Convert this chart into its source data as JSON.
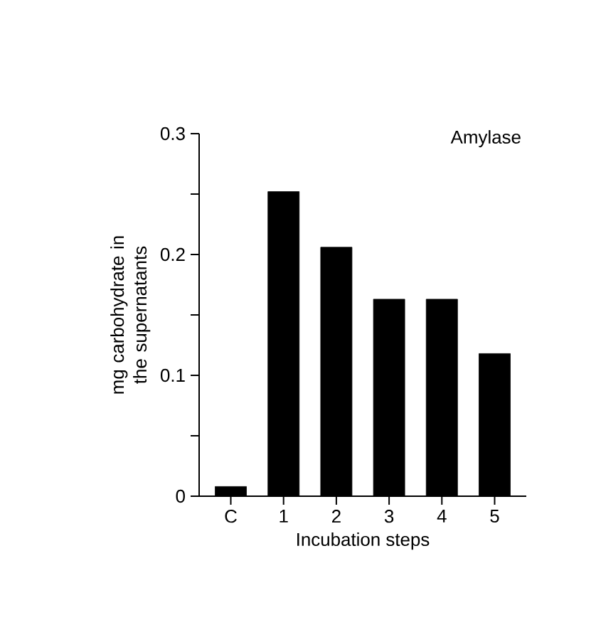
{
  "chart_data": {
    "type": "bar",
    "title": "Amylase",
    "xlabel": "Incubation steps",
    "ylabel": "mg carbohydrate in the supernatants",
    "categories": [
      "C",
      "1",
      "2",
      "3",
      "4",
      "5"
    ],
    "values": [
      0.008,
      0.252,
      0.206,
      0.163,
      0.163,
      0.118
    ],
    "color": "#000000",
    "ylim": [
      0,
      0.3
    ],
    "yticks": [
      0,
      {
        "value": 0.05,
        "label": null
      },
      0.1,
      {
        "value": 0.15,
        "label": null
      },
      0.2,
      {
        "value": 0.25,
        "label": null
      },
      0.3
    ]
  }
}
